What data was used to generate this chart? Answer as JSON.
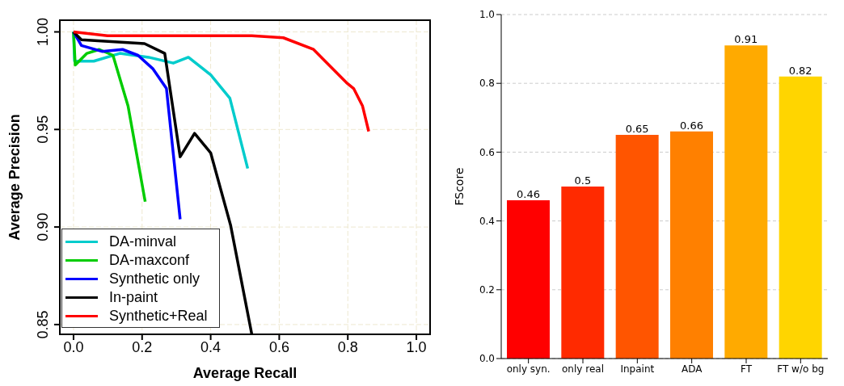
{
  "chart_data": [
    {
      "type": "line",
      "xlabel": "Average Recall",
      "ylabel": "Average Precision",
      "xlim": [
        -0.04,
        1.04
      ],
      "ylim": [
        0.845,
        1.006
      ],
      "xticks": [
        {
          "value": 0,
          "label": "0.0"
        },
        {
          "value": 0.2,
          "label": "0.2"
        },
        {
          "value": 0.4,
          "label": "0.4"
        },
        {
          "value": 0.6,
          "label": "0.6"
        },
        {
          "value": 0.8,
          "label": "0.8"
        },
        {
          "value": 1,
          "label": "1.0"
        }
      ],
      "yticks": [
        {
          "value": 0.85,
          "label": "0.85"
        },
        {
          "value": 0.9,
          "label": "0.90"
        },
        {
          "value": 0.95,
          "label": "0.95"
        },
        {
          "value": 1,
          "label": "1.00"
        }
      ],
      "grid": true,
      "legend": "bottom left",
      "line_style": "solid",
      "marker": "none",
      "series": [
        {
          "name": "DA-minval",
          "color": "#00cccc",
          "x": [
            0,
            0.003,
            0.059,
            0.135,
            0.219,
            0.291,
            0.335,
            0.4,
            0.456,
            0.508
          ],
          "values": [
            1.0,
            0.985,
            0.985,
            0.989,
            0.987,
            0.984,
            0.987,
            0.978,
            0.966,
            0.93
          ]
        },
        {
          "name": "DA-maxconf",
          "color": "#00cc00",
          "x": [
            0,
            0.005,
            0.039,
            0.075,
            0.115,
            0.159,
            0.209
          ],
          "values": [
            1.0,
            0.983,
            0.989,
            0.991,
            0.988,
            0.962,
            0.913
          ]
        },
        {
          "name": "Synthetic only",
          "color": "#0000ff",
          "x": [
            0,
            0.023,
            0.083,
            0.143,
            0.188,
            0.232,
            0.271,
            0.311
          ],
          "values": [
            1.0,
            0.993,
            0.99,
            0.991,
            0.988,
            0.981,
            0.971,
            0.904
          ]
        },
        {
          "name": "In-paint",
          "color": "#000000",
          "x": [
            0,
            0.023,
            0.207,
            0.266,
            0.311,
            0.353,
            0.4,
            0.458,
            0.52
          ],
          "values": [
            1.0,
            0.996,
            0.994,
            0.989,
            0.936,
            0.948,
            0.938,
            0.901,
            0.845
          ]
        },
        {
          "name": "Synthetic+Real",
          "color": "#ff0000",
          "x": [
            0,
            0.099,
            0.52,
            0.612,
            0.7,
            0.796,
            0.817,
            0.843,
            0.861
          ],
          "values": [
            1.0,
            0.998,
            0.998,
            0.997,
            0.991,
            0.974,
            0.971,
            0.962,
            0.949
          ]
        }
      ]
    },
    {
      "type": "bar",
      "ylabel": "FScore",
      "categories": [
        "only syn.",
        "only real",
        "Inpaint",
        "ADA",
        "FT",
        "FT w/o bg"
      ],
      "values": [
        0.46,
        0.5,
        0.65,
        0.66,
        0.91,
        0.82
      ],
      "colors": [
        "#ff0000",
        "#ff2a00",
        "#ff5500",
        "#ff8000",
        "#ffaa00",
        "#ffd500"
      ],
      "ylim": [
        0,
        1
      ],
      "yticks": [
        {
          "value": 0,
          "label": "0.0"
        },
        {
          "value": 0.2,
          "label": "0.2"
        },
        {
          "value": 0.4,
          "label": "0.4"
        },
        {
          "value": 0.6,
          "label": "0.6"
        },
        {
          "value": 0.8,
          "label": "0.8"
        },
        {
          "value": 1,
          "label": "1.0"
        }
      ],
      "grid": "y",
      "data_labels": true
    }
  ]
}
